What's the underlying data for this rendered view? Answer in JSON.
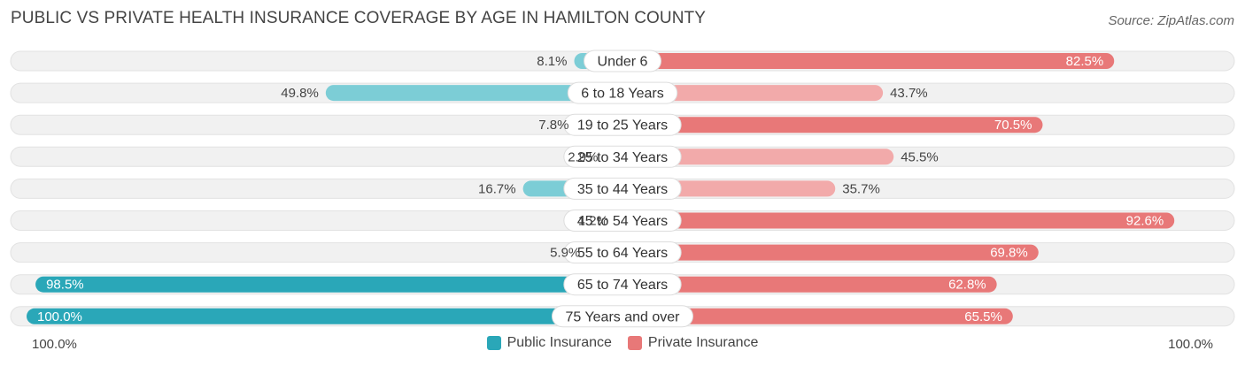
{
  "title": "PUBLIC VS PRIVATE HEALTH INSURANCE COVERAGE BY AGE IN HAMILTON COUNTY",
  "source": "Source: ZipAtlas.com",
  "axis": {
    "left_label": "100.0%",
    "right_label": "100.0%"
  },
  "legend": {
    "public_label": "Public Insurance",
    "private_label": "Private Insurance"
  },
  "colors": {
    "public_dark": "#2aa7b8",
    "public_light": "#7ccdd6",
    "private_dark": "#e87878",
    "private_light": "#f2aaaa",
    "track": "#f1f1f1"
  },
  "chart_data": {
    "type": "bar",
    "title": "PUBLIC VS PRIVATE HEALTH INSURANCE COVERAGE BY AGE IN HAMILTON COUNTY",
    "orientation": "horizontal-diverging",
    "categories": [
      "Under 6",
      "6 to 18 Years",
      "19 to 25 Years",
      "25 to 34 Years",
      "35 to 44 Years",
      "45 to 54 Years",
      "55 to 64 Years",
      "65 to 74 Years",
      "75 Years and over"
    ],
    "series": [
      {
        "name": "Public Insurance",
        "values": [
          8.1,
          49.8,
          7.8,
          2.9,
          16.7,
          1.2,
          5.9,
          98.5,
          100.0
        ],
        "labels": [
          "8.1%",
          "49.8%",
          "7.8%",
          "2.9%",
          "16.7%",
          "1.2%",
          "5.9%",
          "98.5%",
          "100.0%"
        ]
      },
      {
        "name": "Private Insurance",
        "values": [
          82.5,
          43.7,
          70.5,
          45.5,
          35.7,
          92.6,
          69.8,
          62.8,
          65.5
        ],
        "labels": [
          "82.5%",
          "43.7%",
          "70.5%",
          "45.5%",
          "35.7%",
          "92.6%",
          "69.8%",
          "62.8%",
          "65.5%"
        ]
      }
    ],
    "xlim": [
      -100,
      100
    ],
    "legend_position": "bottom-center"
  }
}
